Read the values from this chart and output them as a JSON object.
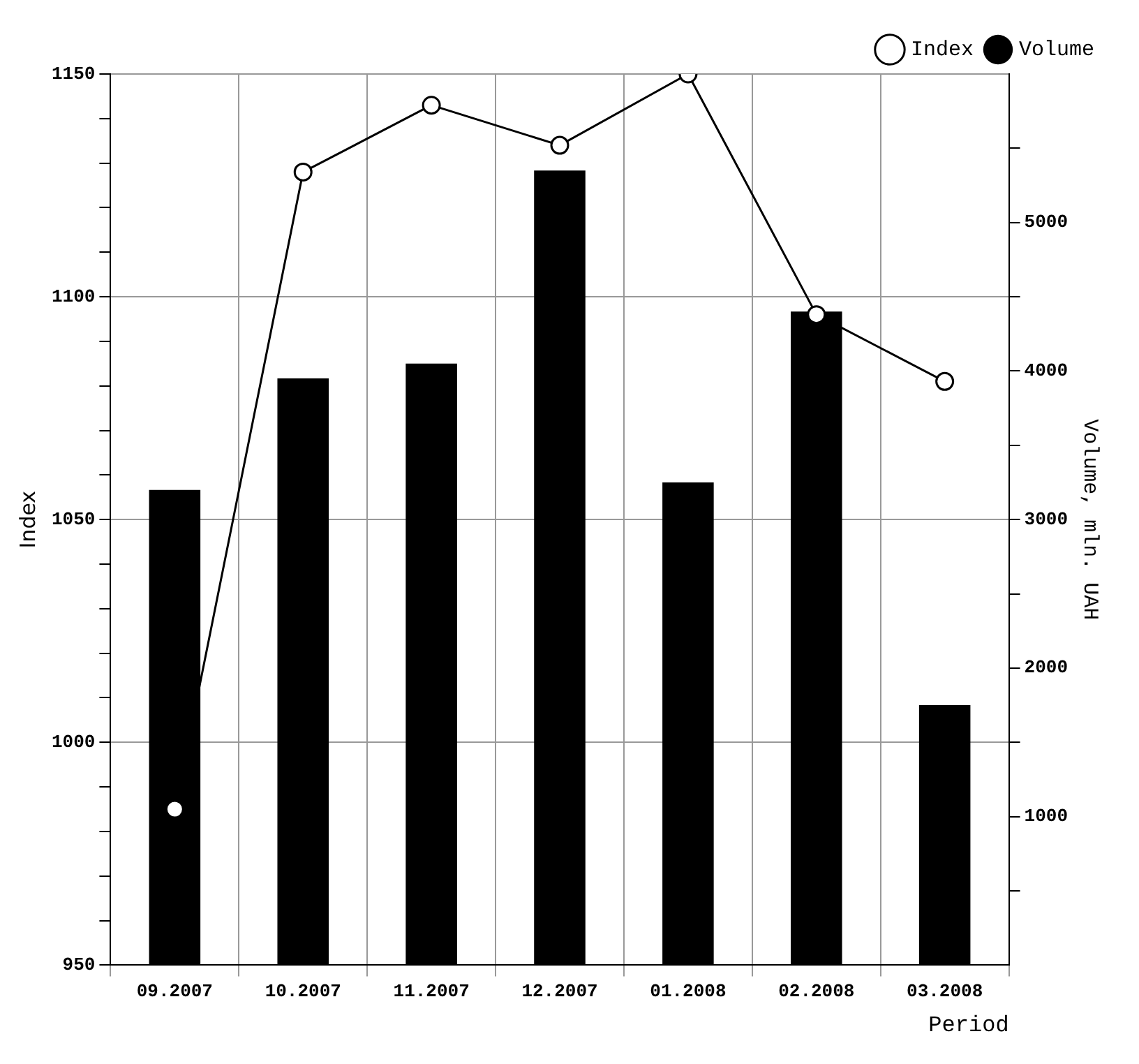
{
  "chart_data": {
    "type": "bar",
    "xlabel": "Period",
    "ylabel": "Index",
    "y2label": "Volume, mln. UAH",
    "categories": [
      "09.2007",
      "10.2007",
      "11.2007",
      "12.2007",
      "01.2008",
      "02.2008",
      "03.2008"
    ],
    "series": [
      {
        "name": "Index",
        "type": "line",
        "color": "#000000",
        "values": [
          985,
          1128,
          1143,
          1134,
          1150,
          1096,
          1081
        ]
      },
      {
        "name": "Volume",
        "axis": "y2",
        "color": "#000000",
        "values": [
          3200,
          3950,
          4050,
          5350,
          3250,
          4400,
          1750
        ]
      }
    ],
    "ylim": [
      950,
      1150
    ],
    "yticks": [
      950,
      {
        "value": 960,
        "label": null
      },
      {
        "value": 970,
        "label": null
      },
      {
        "value": 980,
        "label": null
      },
      {
        "value": 990,
        "label": null
      },
      1000,
      {
        "value": 1010,
        "label": null
      },
      {
        "value": 1020,
        "label": null
      },
      {
        "value": 1030,
        "label": null
      },
      {
        "value": 1040,
        "label": null
      },
      1050,
      {
        "value": 1060,
        "label": null
      },
      {
        "value": 1070,
        "label": null
      },
      {
        "value": 1080,
        "label": null
      },
      {
        "value": 1090,
        "label": null
      },
      1100,
      {
        "value": 1110,
        "label": null
      },
      {
        "value": 1120,
        "label": null
      },
      {
        "value": 1130,
        "label": null
      },
      {
        "value": 1140,
        "label": null
      },
      1150
    ],
    "y2lim": [
      0,
      6000
    ],
    "y2ticks": [
      {
        "value": 500,
        "label": null
      },
      1000,
      {
        "value": 1500,
        "label": null
      },
      2000,
      {
        "value": 2500,
        "label": null
      },
      3000,
      {
        "value": 3500,
        "label": null
      },
      4000,
      {
        "value": 4500,
        "label": null
      },
      5000,
      {
        "value": 5500,
        "label": null
      }
    ],
    "grid": true,
    "legend": "top right",
    "marker": "circle",
    "line_style": "solid"
  }
}
